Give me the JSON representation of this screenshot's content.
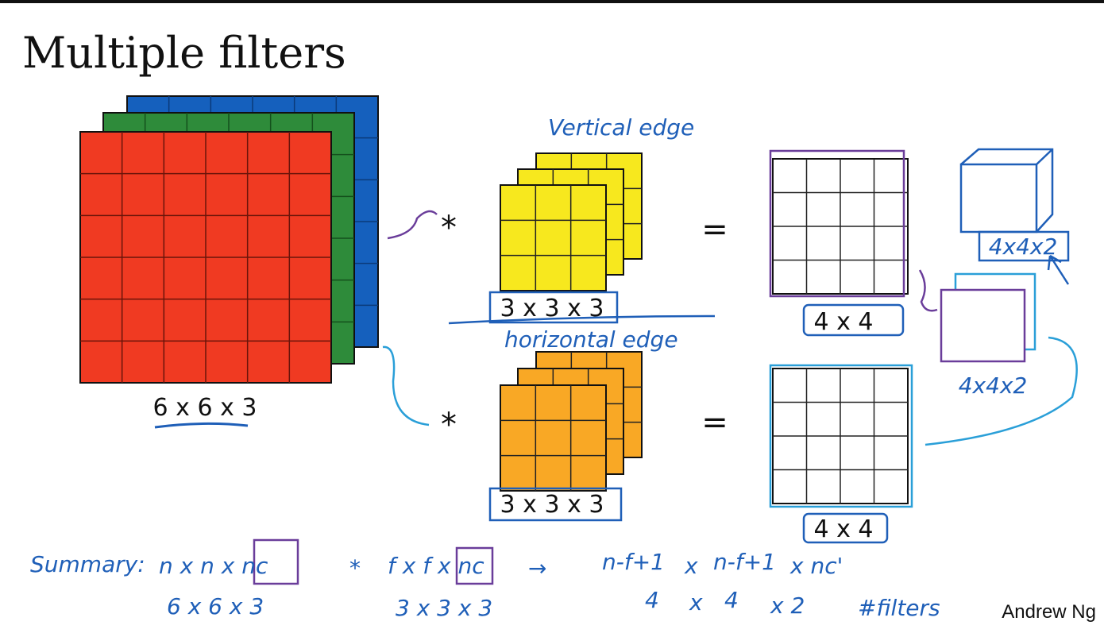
{
  "title": "Multiple filters",
  "input": {
    "label": "6 x 6 x 3"
  },
  "operators": {
    "convolve": "*",
    "equals": "="
  },
  "filters": [
    {
      "annotation": "Vertical edge",
      "label": "3 x 3 x 3"
    },
    {
      "annotation": "horizontal edge",
      "label": "3 x 3 x 3"
    }
  ],
  "outputs": [
    {
      "label": "4 x 4"
    },
    {
      "label": "4 x 4"
    }
  ],
  "stacked_output": {
    "labels": [
      "4x4x2",
      "4x4x2"
    ]
  },
  "summary": {
    "heading": "Summary:",
    "formula": [
      "n x n x nc",
      "*",
      "f x f x nc",
      "→",
      "n-f+1",
      "x",
      "n-f+1",
      "x nc'"
    ],
    "example": [
      "6 x 6 x 3",
      "3 x 3 x 3",
      "4",
      "x",
      "4",
      "x 2",
      "#filters"
    ]
  },
  "footer": "Andrew Ng"
}
